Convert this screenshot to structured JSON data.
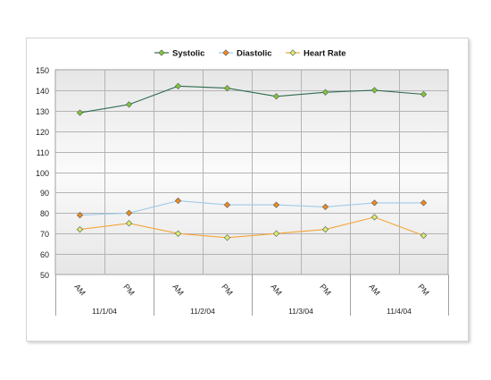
{
  "chart_data": {
    "type": "line",
    "title": "",
    "xlabel": "",
    "ylabel": "",
    "ylim": [
      50,
      150
    ],
    "yticks": [
      50,
      60,
      70,
      80,
      90,
      100,
      110,
      120,
      130,
      140,
      150
    ],
    "grid": true,
    "legend_position": "top-center",
    "categories": [
      "AM",
      "PM",
      "AM",
      "PM",
      "AM",
      "PM",
      "AM",
      "PM"
    ],
    "groups": [
      "11/1/04",
      "11/2/04",
      "11/3/04",
      "11/4/04"
    ],
    "series": [
      {
        "name": "Systolic",
        "values": [
          129,
          133,
          142,
          141,
          137,
          139,
          140,
          138
        ],
        "line_color": "#2e6b4f",
        "marker_color": "#7ec832",
        "marker": "diamond"
      },
      {
        "name": "Diastolic",
        "values": [
          79,
          80,
          86,
          84,
          84,
          83,
          85,
          85
        ],
        "line_color": "#9fcbe8",
        "marker_color": "#f08a1c",
        "marker": "diamond"
      },
      {
        "name": "Heart Rate",
        "values": [
          72,
          75,
          70,
          68,
          70,
          72,
          78,
          69
        ],
        "line_color": "#f3a535",
        "marker_color": "#d6ef6e",
        "marker": "diamond"
      }
    ]
  }
}
